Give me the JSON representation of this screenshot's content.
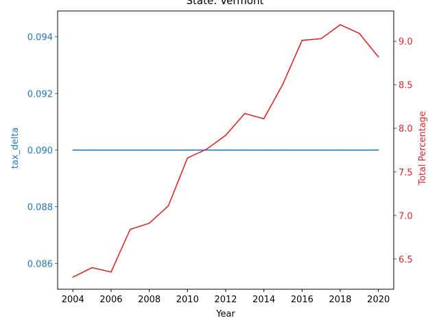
{
  "chart_data": {
    "type": "line",
    "title": "State: Vermont",
    "xlabel": "Year",
    "ylabel_left": "tax_delta",
    "ylabel_right": "Total Percentage",
    "xlim": [
      2003.2,
      2020.8
    ],
    "x_ticks": [
      2004,
      2006,
      2008,
      2010,
      2012,
      2014,
      2016,
      2018,
      2020
    ],
    "ylim_left": [
      0.08509,
      0.09491
    ],
    "y_ticks_left": [
      "0.086",
      "0.088",
      "0.090",
      "0.092",
      "0.094"
    ],
    "ylim_right": [
      6.152,
      9.348
    ],
    "y_ticks_right": [
      "6.5",
      "7.0",
      "7.5",
      "8.0",
      "8.5",
      "9.0"
    ],
    "grid": false,
    "colors": {
      "left": "#1f77b4",
      "right": "#d62728",
      "axis": "#000000"
    },
    "x": [
      2004,
      2005,
      2006,
      2007,
      2008,
      2009,
      2010,
      2011,
      2012,
      2013,
      2014,
      2015,
      2016,
      2017,
      2018,
      2019,
      2020
    ],
    "series": [
      {
        "axis": "left",
        "values": [
          0.09,
          0.09,
          0.09,
          0.09,
          0.09,
          0.09,
          0.09,
          0.09,
          0.09,
          0.09,
          0.09,
          0.09,
          0.09,
          0.09,
          0.09,
          0.09,
          0.09
        ]
      },
      {
        "axis": "right",
        "values": [
          6.29,
          6.4,
          6.35,
          6.84,
          6.91,
          7.11,
          7.66,
          7.76,
          7.92,
          8.17,
          8.11,
          8.51,
          9.01,
          9.03,
          9.19,
          9.09,
          8.82
        ]
      }
    ]
  }
}
